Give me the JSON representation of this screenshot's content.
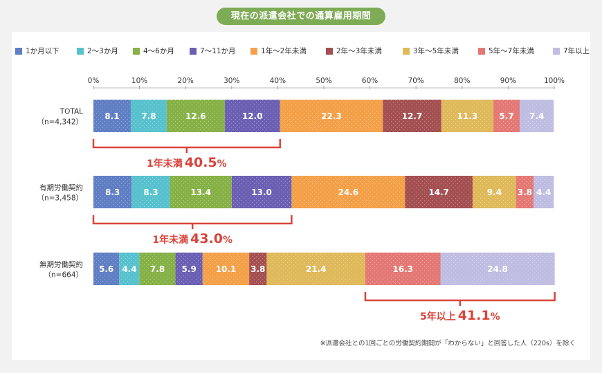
{
  "title": "現在の派遣会社での通算雇用期間",
  "footnote": "※派遣会社との1回ごとの労働契約期間が「わからない」と回答した人（220s）を除く",
  "colors": [
    "#5f7ec3",
    "#57c1cd",
    "#86b146",
    "#6a5fb3",
    "#f4a048",
    "#a44f51",
    "#dfb95a",
    "#e47874",
    "#bfbde2"
  ],
  "chart_data": {
    "type": "bar",
    "orientation": "horizontal-stacked-100",
    "legend_position": "top",
    "xlim": [
      0,
      100
    ],
    "x_ticks": [
      "0%",
      "10%",
      "20%",
      "30%",
      "40%",
      "50%",
      "60%",
      "70%",
      "80%",
      "90%",
      "100%"
    ],
    "legend": [
      "1か月以下",
      "2〜3か月",
      "4〜6か月",
      "7〜11か月",
      "1年〜2年未満",
      "2年〜3年未満",
      "3年〜5年未満",
      "5年〜7年未満",
      "7年以上"
    ],
    "rows": [
      {
        "label1": "TOTAL",
        "label2": "（n=4,342）",
        "values": [
          8.1,
          7.8,
          12.6,
          12.0,
          22.3,
          12.7,
          11.3,
          5.7,
          7.4
        ]
      },
      {
        "label1": "有期労働契約",
        "label2": "（n=3,458）",
        "values": [
          8.3,
          8.3,
          13.4,
          13.0,
          24.6,
          14.7,
          9.4,
          3.8,
          4.4
        ]
      },
      {
        "label1": "無期労働契約",
        "label2": "（n=664）",
        "values": [
          5.6,
          4.4,
          7.8,
          5.9,
          10.1,
          3.8,
          21.4,
          16.3,
          24.8
        ]
      }
    ],
    "annotations": [
      {
        "row": 0,
        "from": 0,
        "to": 4,
        "prefix": "1年未満",
        "value": "40.5",
        "suffix": "%"
      },
      {
        "row": 1,
        "from": 0,
        "to": 4,
        "prefix": "1年未満",
        "value": "43.0",
        "suffix": "%"
      },
      {
        "row": 2,
        "from": 7,
        "to": 9,
        "prefix": "5年以上",
        "value": "41.1",
        "suffix": "%"
      }
    ]
  }
}
